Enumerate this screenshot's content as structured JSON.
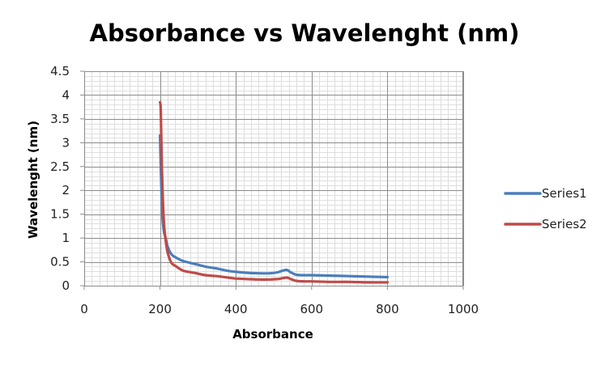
{
  "chart_data": {
    "type": "line",
    "title": "Absorbance vs Wavelenght (nm)",
    "xlabel": "Absorbance",
    "ylabel": "Wavelenght (nm)",
    "xlim": [
      0,
      1000
    ],
    "ylim": [
      0,
      4.5
    ],
    "x_ticks": [
      "0",
      "200",
      "400",
      "600",
      "800",
      "1000"
    ],
    "y_ticks": [
      "0",
      "0.5",
      "1",
      "1.5",
      "2",
      "2.5",
      "3",
      "3.5",
      "4",
      "4.5"
    ],
    "grid": true,
    "legend_position": "right",
    "series": [
      {
        "name": "Series1",
        "color": "#4a7ebb",
        "x": [
          200,
          203,
          206,
          210,
          215,
          220,
          230,
          240,
          260,
          290,
          320,
          350,
          380,
          400,
          430,
          460,
          490,
          510,
          525,
          535,
          545,
          560,
          580,
          600,
          650,
          700,
          750,
          800
        ],
        "y": [
          3.15,
          2.2,
          1.5,
          1.15,
          1.0,
          0.82,
          0.66,
          0.6,
          0.52,
          0.46,
          0.4,
          0.36,
          0.31,
          0.29,
          0.27,
          0.26,
          0.26,
          0.28,
          0.32,
          0.33,
          0.28,
          0.23,
          0.22,
          0.22,
          0.21,
          0.2,
          0.19,
          0.18
        ]
      },
      {
        "name": "Series2",
        "color": "#be4b48",
        "x": [
          200,
          202,
          204,
          207,
          211,
          215,
          220,
          230,
          240,
          260,
          290,
          320,
          350,
          380,
          400,
          430,
          460,
          490,
          510,
          525,
          535,
          545,
          560,
          580,
          600,
          650,
          700,
          750,
          800
        ],
        "y": [
          3.85,
          3.7,
          2.8,
          1.9,
          1.25,
          0.95,
          0.7,
          0.48,
          0.42,
          0.32,
          0.27,
          0.22,
          0.2,
          0.17,
          0.15,
          0.14,
          0.13,
          0.13,
          0.14,
          0.16,
          0.17,
          0.14,
          0.1,
          0.09,
          0.09,
          0.08,
          0.08,
          0.07,
          0.07
        ]
      }
    ]
  }
}
